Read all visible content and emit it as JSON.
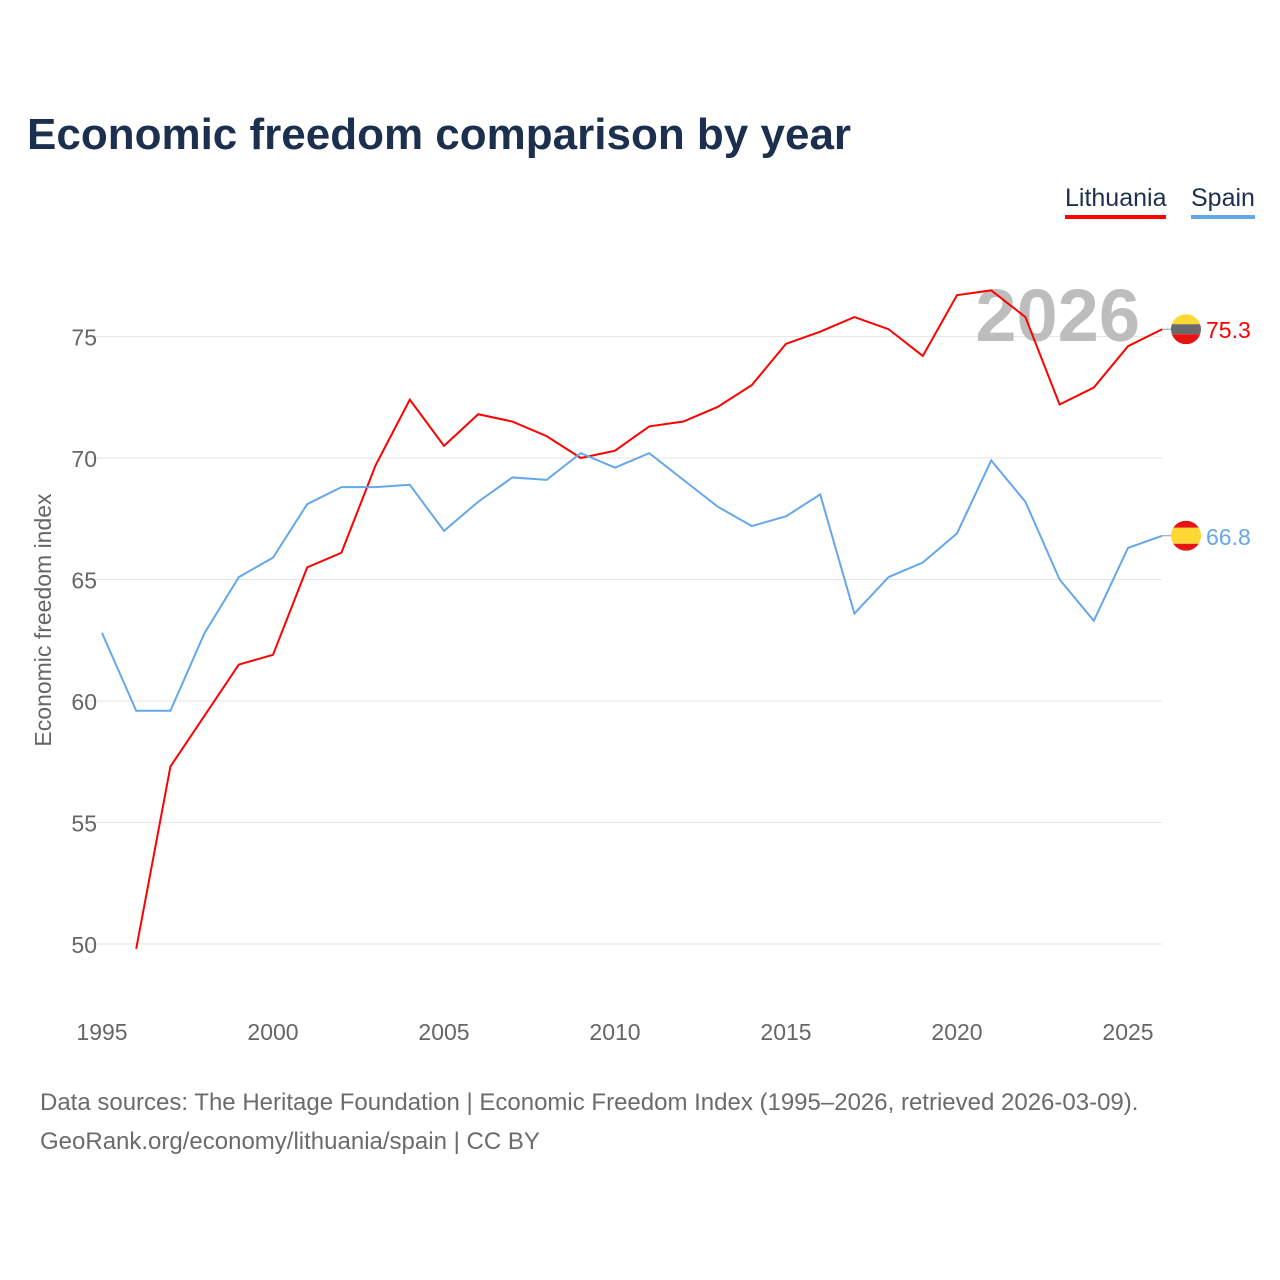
{
  "chart_data": {
    "type": "line",
    "title": "Economic freedom comparison by year",
    "ylabel": "Economic freedom index",
    "xlabel": "",
    "ylim": [
      47.5,
      78
    ],
    "xlim": [
      1995,
      2026
    ],
    "yticks": [
      50,
      55,
      60,
      65,
      70,
      75
    ],
    "xticks": [
      1995,
      2000,
      2005,
      2010,
      2015,
      2020,
      2025
    ],
    "year_label": "2026",
    "legend_position": "top-right",
    "series": [
      {
        "name": "Lithuania",
        "color": "#ff0000",
        "end_label": "75.3",
        "x": [
          1996,
          1997,
          1998,
          1999,
          2000,
          2001,
          2002,
          2003,
          2004,
          2005,
          2006,
          2007,
          2008,
          2009,
          2010,
          2011,
          2012,
          2013,
          2014,
          2015,
          2016,
          2017,
          2018,
          2019,
          2020,
          2021,
          2022,
          2023,
          2024,
          2025,
          2026
        ],
        "values": [
          49.8,
          57.3,
          59.4,
          61.5,
          61.9,
          65.5,
          66.1,
          69.7,
          72.4,
          70.5,
          71.8,
          71.5,
          70.9,
          70.0,
          70.3,
          71.3,
          71.5,
          72.1,
          73.0,
          74.7,
          75.2,
          75.8,
          75.3,
          74.2,
          76.7,
          76.9,
          75.8,
          72.2,
          72.9,
          74.6,
          75.3
        ]
      },
      {
        "name": "Spain",
        "color": "#64a7ea",
        "end_label": "66.8",
        "x": [
          1995,
          1996,
          1997,
          1998,
          1999,
          2000,
          2001,
          2002,
          2003,
          2004,
          2005,
          2006,
          2007,
          2008,
          2009,
          2010,
          2011,
          2012,
          2013,
          2014,
          2015,
          2016,
          2017,
          2018,
          2019,
          2020,
          2021,
          2022,
          2023,
          2024,
          2025,
          2026
        ],
        "values": [
          62.8,
          59.6,
          59.6,
          62.8,
          65.1,
          65.9,
          68.1,
          68.8,
          68.8,
          68.9,
          67.0,
          68.2,
          69.2,
          69.1,
          70.2,
          69.6,
          70.2,
          69.1,
          68.0,
          67.2,
          67.6,
          68.5,
          63.6,
          65.1,
          65.7,
          66.9,
          69.9,
          68.2,
          65.0,
          63.3,
          66.3,
          66.8
        ]
      }
    ]
  },
  "footer": {
    "line1": "Data sources: The Heritage Foundation | Economic Freedom Index (1995–2026, retrieved 2026-03-09).",
    "line2": "GeoRank.org/economy/lithuania/spain | CC BY"
  }
}
